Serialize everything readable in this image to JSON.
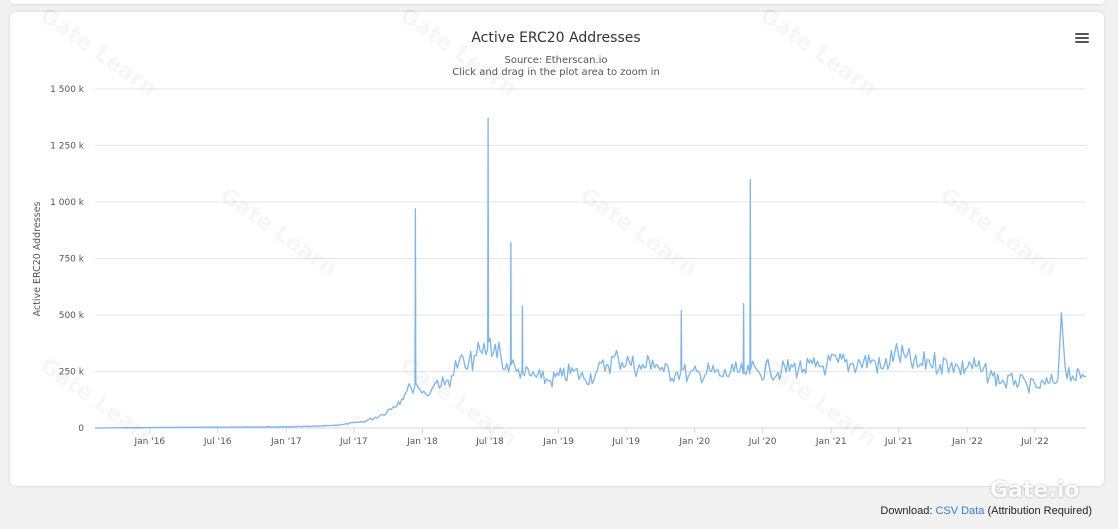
{
  "header": {
    "title": "Active ERC20 Addresses",
    "source": "Source: Etherscan.io",
    "hint": "Click and drag in the plot area to zoom in"
  },
  "footer": {
    "download_label": "Download:",
    "csv_link": "CSV Data",
    "attribution": "(Attribution Required)"
  },
  "brand": {
    "logo_text": "Gate.io",
    "watermark_text": "Gate Learn"
  },
  "colors": {
    "series": "#7cb5ec",
    "grid": "#e6e6e6"
  },
  "chart_data": {
    "type": "line",
    "title": "Active ERC20 Addresses",
    "subtitle": "Source: Etherscan.io",
    "ylabel": "Active ERC20 Addresses",
    "xlabel": "",
    "ylim": [
      0,
      1500000
    ],
    "y_ticks": [
      0,
      250000,
      500000,
      750000,
      1000000,
      1250000,
      1500000
    ],
    "y_tick_labels": [
      "0",
      "250 k",
      "500 k",
      "750 k",
      "1 000 k",
      "1 250 k",
      "1 500 k"
    ],
    "xlim": [
      "2015-08-07",
      "2022-11-15"
    ],
    "x_ticks": [
      "2016-01-01",
      "2016-07-01",
      "2017-01-01",
      "2017-07-01",
      "2018-01-01",
      "2018-07-01",
      "2019-01-01",
      "2019-07-01",
      "2020-01-01",
      "2020-07-01",
      "2021-01-01",
      "2021-07-01",
      "2022-01-01",
      "2022-07-01"
    ],
    "x_tick_labels": [
      "Jan '16",
      "Jul '16",
      "Jan '17",
      "Jul '17",
      "Jan '18",
      "Jul '18",
      "Jan '19",
      "Jul '19",
      "Jan '20",
      "Jul '20",
      "Jan '21",
      "Jul '21",
      "Jan '22",
      "Jul '22"
    ],
    "grid": true,
    "legend": "none",
    "series": [
      {
        "x": [
          "2015-08-07",
          "2016-01-01",
          "2016-07-01",
          "2017-01-01",
          "2017-04-01",
          "2017-06-01",
          "2017-08-01",
          "2017-09-15",
          "2017-10-15",
          "2017-11-15",
          "2017-12-01",
          "2017-12-12",
          "2017-12-13",
          "2017-12-14",
          "2017-12-25",
          "2018-01-10",
          "2018-01-25",
          "2018-02-10",
          "2018-03-01",
          "2018-03-20",
          "2018-04-10",
          "2018-05-01",
          "2018-05-20",
          "2018-06-10",
          "2018-06-25",
          "2018-06-26",
          "2018-06-27",
          "2018-07-10",
          "2018-07-25",
          "2018-08-01",
          "2018-08-05",
          "2018-08-25",
          "2018-08-26",
          "2018-08-27",
          "2018-09-10",
          "2018-09-25",
          "2018-09-26",
          "2018-09-27",
          "2018-10-20",
          "2018-11-15",
          "2018-12-10",
          "2019-01-10",
          "2019-02-10",
          "2019-03-10",
          "2019-04-10",
          "2019-05-10",
          "2019-06-10",
          "2019-07-10",
          "2019-08-10",
          "2019-09-10",
          "2019-10-10",
          "2019-11-10",
          "2019-11-25",
          "2019-11-26",
          "2019-11-27",
          "2019-12-15",
          "2020-01-15",
          "2020-02-15",
          "2020-03-12",
          "2020-04-15",
          "2020-05-10",
          "2020-05-11",
          "2020-05-12",
          "2020-05-28",
          "2020-05-29",
          "2020-05-30",
          "2020-06-20",
          "2020-07-20",
          "2020-08-20",
          "2020-09-20",
          "2020-10-20",
          "2020-11-20",
          "2020-12-20",
          "2021-01-20",
          "2021-02-20",
          "2021-03-20",
          "2021-04-20",
          "2021-05-19",
          "2021-06-20",
          "2021-07-20",
          "2021-08-20",
          "2021-09-20",
          "2021-10-20",
          "2021-11-20",
          "2021-12-10",
          "2022-01-10",
          "2022-02-10",
          "2022-03-10",
          "2022-04-10",
          "2022-05-10",
          "2022-06-10",
          "2022-07-10",
          "2022-08-10",
          "2022-09-01",
          "2022-09-10",
          "2022-09-20",
          "2022-10-10",
          "2022-11-01",
          "2022-11-15"
        ],
        "y": [
          0,
          2000,
          4000,
          5000,
          8000,
          15000,
          30000,
          60000,
          95000,
          150000,
          180000,
          190000,
          970000,
          200000,
          170000,
          150000,
          170000,
          210000,
          190000,
          230000,
          300000,
          260000,
          320000,
          330000,
          350000,
          1370000,
          380000,
          330000,
          380000,
          300000,
          260000,
          290000,
          820000,
          280000,
          250000,
          260000,
          540000,
          240000,
          230000,
          220000,
          210000,
          230000,
          250000,
          220000,
          240000,
          280000,
          310000,
          290000,
          260000,
          300000,
          250000,
          240000,
          250000,
          520000,
          260000,
          230000,
          240000,
          250000,
          230000,
          250000,
          240000,
          550000,
          250000,
          240000,
          1100000,
          260000,
          250000,
          260000,
          250000,
          270000,
          260000,
          270000,
          280000,
          290000,
          280000,
          290000,
          300000,
          260000,
          330000,
          310000,
          270000,
          300000,
          280000,
          290000,
          260000,
          280000,
          250000,
          230000,
          200000,
          210000,
          190000,
          180000,
          200000,
          220000,
          510000,
          270000,
          230000,
          220000,
          230000
        ]
      }
    ]
  }
}
